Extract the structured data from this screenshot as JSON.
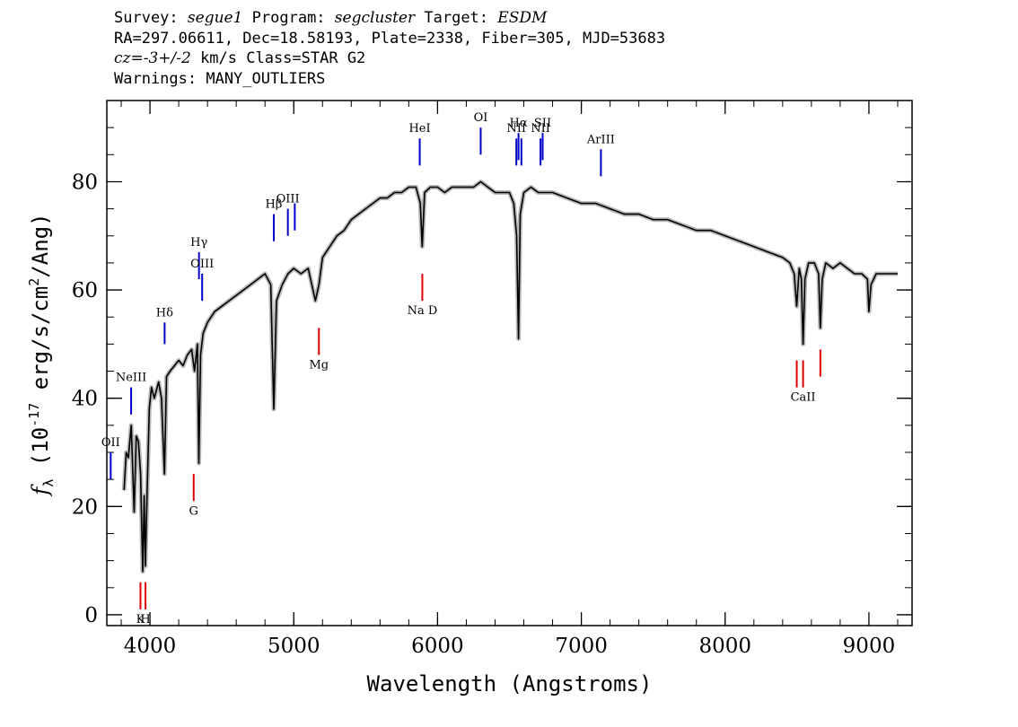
{
  "header": {
    "line1": {
      "survey_label": "Survey:",
      "survey": "segue1",
      "program_label": "Program:",
      "program": "segcluster",
      "target_label": "Target:",
      "target": "ESDM"
    },
    "line2": "RA=297.06611, Dec=18.58193, Plate=2338, Fiber=305, MJD=53683",
    "line3": {
      "cz_label": "cz=",
      "cz_value": "-3+/-2",
      "cz_rest": " km/s  Class=STAR G2"
    },
    "line4": "Warnings: MANY_OUTLIERS"
  },
  "chart_data": {
    "type": "line",
    "xlabel": "Wavelength (Angstroms)",
    "ylabel_parts": {
      "symbol": "f",
      "subscript": "λ",
      "prefix": " (10",
      "exponent": "-17",
      "mid": " erg/s/cm",
      "exponent2": "2",
      "suffix": "/Ang)"
    },
    "xlim": [
      3700,
      9300
    ],
    "ylim": [
      -2,
      95
    ],
    "x_ticks": [
      4000,
      5000,
      6000,
      7000,
      8000,
      9000
    ],
    "x_tick_labels": [
      "4000",
      "5000",
      "6000",
      "7000",
      "8000",
      "9000"
    ],
    "y_ticks": [
      0,
      20,
      40,
      60,
      80
    ],
    "y_tick_labels": [
      "0",
      "20",
      "40",
      "60",
      "80"
    ],
    "x_minor_step": 200,
    "y_minor_step": 5,
    "series": [
      {
        "color": "#000000",
        "x": [
          3820,
          3835,
          3850,
          3870,
          3890,
          3905,
          3920,
          3935,
          3950,
          3960,
          3968,
          3980,
          3995,
          4010,
          4030,
          4060,
          4080,
          4101,
          4115,
          4140,
          4170,
          4200,
          4230,
          4260,
          4290,
          4310,
          4330,
          4340,
          4352,
          4370,
          4400,
          4450,
          4500,
          4550,
          4600,
          4650,
          4700,
          4750,
          4800,
          4840,
          4861,
          4880,
          4920,
          4960,
          5000,
          5050,
          5100,
          5150,
          5175,
          5200,
          5250,
          5300,
          5350,
          5400,
          5450,
          5500,
          5550,
          5600,
          5650,
          5700,
          5750,
          5800,
          5850,
          5880,
          5893,
          5910,
          5950,
          6000,
          6050,
          6100,
          6150,
          6200,
          6250,
          6300,
          6350,
          6400,
          6450,
          6500,
          6530,
          6550,
          6563,
          6575,
          6600,
          6650,
          6700,
          6750,
          6800,
          6900,
          7000,
          7100,
          7200,
          7300,
          7400,
          7500,
          7600,
          7700,
          7800,
          7900,
          8000,
          8100,
          8200,
          8300,
          8400,
          8450,
          8480,
          8498,
          8515,
          8530,
          8542,
          8555,
          8580,
          8620,
          8650,
          8662,
          8675,
          8700,
          8750,
          8800,
          8850,
          8900,
          8950,
          8990,
          9000,
          9015,
          9050,
          9100,
          9150,
          9200
        ],
        "y": [
          23,
          30,
          29,
          35,
          19,
          33,
          32,
          26,
          8,
          22,
          9,
          22,
          38,
          42,
          40,
          43,
          40,
          26,
          44,
          45,
          46,
          47,
          46,
          48,
          49,
          45,
          50,
          28,
          48,
          52,
          54,
          56,
          57,
          58,
          59,
          60,
          61,
          62,
          63,
          61,
          38,
          58,
          61,
          63,
          64,
          63,
          64,
          58,
          61,
          66,
          68,
          70,
          71,
          73,
          74,
          75,
          76,
          77,
          77,
          78,
          78,
          79,
          79,
          76,
          68,
          78,
          79,
          79,
          78,
          79,
          79,
          79,
          79,
          80,
          79,
          78,
          78,
          78,
          76,
          70,
          51,
          74,
          78,
          79,
          78,
          78,
          78,
          77,
          76,
          76,
          75,
          74,
          74,
          73,
          73,
          72,
          71,
          71,
          70,
          69,
          68,
          67,
          66,
          65,
          63,
          57,
          64,
          62,
          50,
          62,
          65,
          65,
          63,
          53,
          62,
          65,
          64,
          65,
          64,
          63,
          63,
          62,
          56,
          61,
          63,
          63,
          63,
          63
        ]
      }
    ],
    "annotations": {
      "emission": [
        {
          "label": "OII",
          "x": 3727,
          "y1": 30,
          "y2": 25
        },
        {
          "label": "NeIII",
          "x": 3869,
          "y1": 42,
          "y2": 37
        },
        {
          "label": "Hδ",
          "x": 4102,
          "y1": 54,
          "y2": 50
        },
        {
          "label": "Hγ",
          "x": 4341,
          "y1": 67,
          "y2": 62
        },
        {
          "label": "OIII",
          "x": 4363,
          "y1": 63,
          "y2": 58
        },
        {
          "label": "Hβ",
          "x": 4861,
          "y1": 74,
          "y2": 69
        },
        {
          "label": "OIII",
          "x": 4959,
          "y1": 75,
          "y2": 70
        },
        {
          "label": "",
          "x": 5007,
          "y1": 76,
          "y2": 71
        },
        {
          "label": "HeI",
          "x": 5876,
          "y1": 88,
          "y2": 83
        },
        {
          "label": "OI",
          "x": 6300,
          "y1": 90,
          "y2": 85
        },
        {
          "label": "NII",
          "x": 6548,
          "y1": 88,
          "y2": 83
        },
        {
          "label": "Hα",
          "x": 6563,
          "y1": 89,
          "y2": 84
        },
        {
          "label": "",
          "x": 6583,
          "y1": 88,
          "y2": 83
        },
        {
          "label": "NII",
          "x": 6716,
          "y1": 88,
          "y2": 83
        },
        {
          "label": "SII",
          "x": 6731,
          "y1": 89,
          "y2": 84
        },
        {
          "label": "ArIII",
          "x": 7136,
          "y1": 86,
          "y2": 81
        }
      ],
      "absorption": [
        {
          "label": "K",
          "x": 3934,
          "y1": 6,
          "y2": 1
        },
        {
          "label": "H",
          "x": 3969,
          "y1": 6,
          "y2": 1
        },
        {
          "label": "G",
          "x": 4304,
          "y1": 26,
          "y2": 21
        },
        {
          "label": "Mg",
          "x": 5175,
          "y1": 53,
          "y2": 48
        },
        {
          "label": "Na D",
          "x": 5894,
          "y1": 63,
          "y2": 58
        },
        {
          "label": "",
          "x": 8498,
          "y1": 47,
          "y2": 42
        },
        {
          "label": "CaII",
          "x": 8542,
          "y1": 47,
          "y2": 42
        },
        {
          "label": "",
          "x": 8662,
          "y1": 49,
          "y2": 44
        }
      ]
    }
  }
}
